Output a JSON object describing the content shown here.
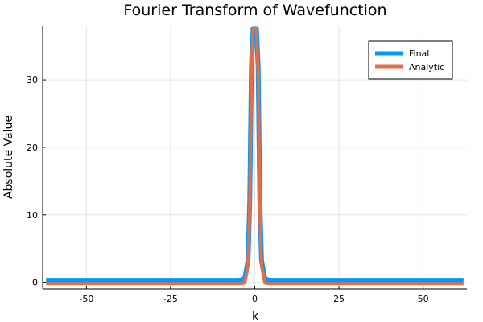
{
  "chart_data": {
    "type": "line",
    "title": "Fourier Transform of Wavefunction",
    "xlabel": "k",
    "ylabel": "Absolute Value",
    "xlim": [
      -63,
      63
    ],
    "ylim": [
      -1,
      38
    ],
    "xticks": [
      -50,
      -25,
      0,
      25,
      50
    ],
    "yticks": [
      0,
      10,
      20,
      30
    ],
    "grid": true,
    "legend_position": "top-right",
    "series": [
      {
        "name": "Final",
        "color": "#009af9",
        "x": [
          -62,
          -10,
          -5,
          -4,
          -3,
          -2,
          -1.5,
          -1,
          -0.5,
          0,
          0.5,
          1,
          1.5,
          2,
          3,
          4,
          5,
          10,
          62
        ],
        "y": [
          0.3,
          0.3,
          0.3,
          0.35,
          0.5,
          3.2,
          12,
          32,
          37.6,
          37.6,
          37.6,
          32,
          12,
          3.2,
          0.5,
          0.35,
          0.3,
          0.3,
          0.3
        ]
      },
      {
        "name": "Analytic",
        "color": "#e26f46",
        "x": [
          -62,
          -10,
          -5,
          -4,
          -3,
          -2,
          -1.5,
          -1,
          -0.5,
          0,
          0.5,
          1,
          1.5,
          2,
          3,
          4,
          5,
          10,
          62
        ],
        "y": [
          -0.2,
          -0.2,
          -0.2,
          -0.18,
          -0.1,
          2.5,
          11,
          31,
          37.6,
          37.6,
          37.6,
          31,
          11,
          2.5,
          -0.1,
          -0.18,
          -0.2,
          -0.2,
          -0.2
        ]
      }
    ]
  }
}
